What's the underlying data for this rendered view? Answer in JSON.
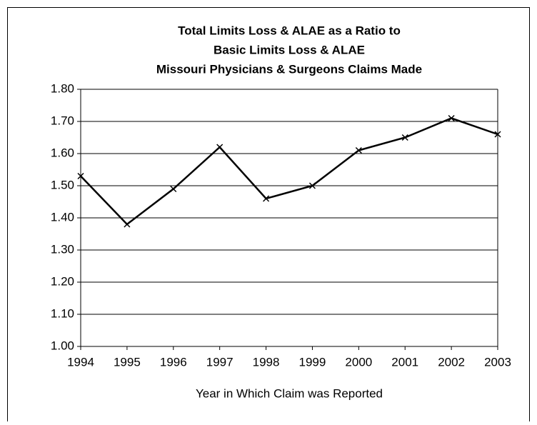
{
  "chart_data": {
    "type": "line",
    "title": [
      "Total Limits Loss & ALAE as a Ratio to",
      "Basic Limits Loss & ALAE",
      "Missouri Physicians & Surgeons Claims Made"
    ],
    "x_label": "Year in Which Claim was Reported",
    "x": [
      1994,
      1995,
      1996,
      1997,
      1998,
      1999,
      2000,
      2001,
      2002,
      2003
    ],
    "series": [
      {
        "color": "#000000",
        "values": [
          1.53,
          1.38,
          1.49,
          1.62,
          1.46,
          1.5,
          1.61,
          1.65,
          1.71,
          1.66
        ]
      }
    ],
    "xlim": [
      1994,
      2003
    ],
    "xticks": [
      1994,
      1995,
      1996,
      1997,
      1998,
      1999,
      2000,
      2001,
      2002,
      2003
    ],
    "ylim": [
      1.0,
      1.8
    ],
    "yticks": [
      {
        "value": 1.0,
        "label": "1.00"
      },
      {
        "value": 1.1,
        "label": "1.10"
      },
      {
        "value": 1.2,
        "label": "1.20"
      },
      {
        "value": 1.3,
        "label": "1.30"
      },
      {
        "value": 1.4,
        "label": "1.40"
      },
      {
        "value": 1.5,
        "label": "1.50"
      },
      {
        "value": 1.6,
        "label": "1.60"
      },
      {
        "value": 1.7,
        "label": "1.70"
      },
      {
        "value": 1.8,
        "label": "1.80"
      }
    ],
    "grid": true
  }
}
